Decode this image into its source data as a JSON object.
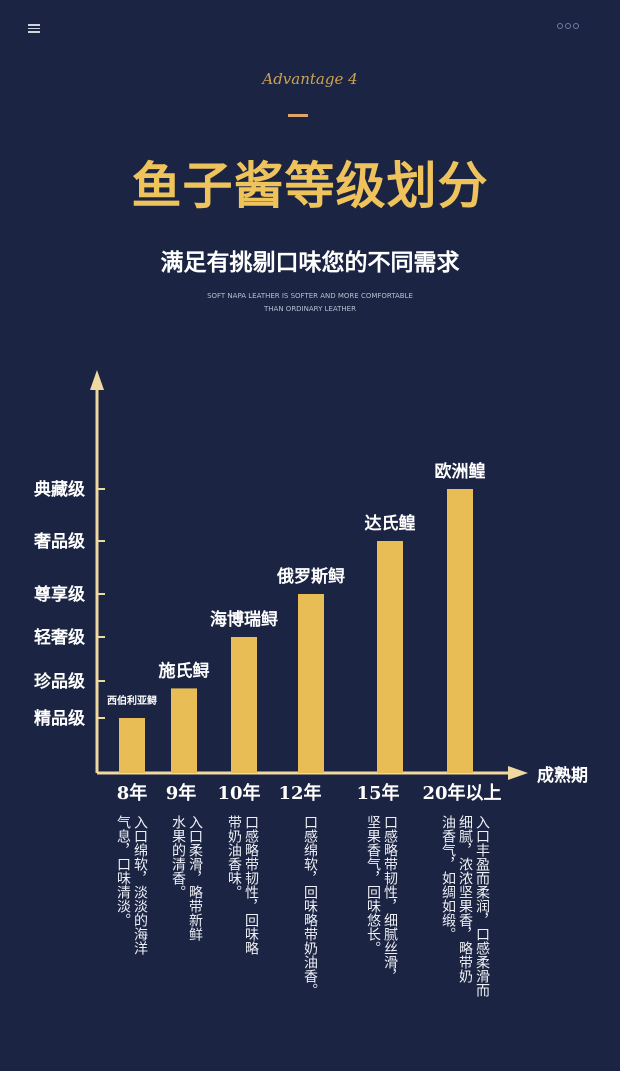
{
  "header": {
    "menu_icon": "hamburger-icon",
    "more_icon": "dots-icon"
  },
  "advantage": "Advantage 4",
  "title": "鱼子酱等级划分",
  "subtitle": "满足有挑剔口味您的不同需求",
  "english": [
    "SOFT NAPA LEATHER IS SOFTER AND MORE COMFORTABLE",
    "THAN ORDINARY LEATHER"
  ],
  "colors": {
    "background": "#1b2442",
    "gold": "#efc35c",
    "bar": "#e8bd55"
  },
  "chart_data": {
    "type": "bar",
    "xlabel": "成熟期",
    "ylabel": "",
    "y_levels": [
      "精品级",
      "珍品级",
      "轻奢级",
      "尊享级",
      "奢品级",
      "典藏级"
    ],
    "categories": [
      "8年",
      "9年",
      "10年",
      "12年",
      "15年",
      "20年以上"
    ],
    "bar_labels": [
      "西伯利亚鲟",
      "施氏鲟",
      "海博瑞鲟",
      "俄罗斯鲟",
      "达氏鳇",
      "欧洲鳇"
    ],
    "values": [
      1,
      1.8,
      3,
      4,
      5,
      6
    ],
    "ylim": [
      0,
      6.5
    ]
  },
  "descriptions": [
    [
      "入口绵软，淡淡的海洋",
      "气息，口味清淡。"
    ],
    [
      "入口柔滑，略带新鲜",
      "水果的清香。"
    ],
    [
      "口感略带韧性，回味略",
      "带奶油香味。"
    ],
    [
      "口感绵软，回味略带奶油香。"
    ],
    [
      "口感略带韧性，细腻丝滑，",
      "坚果香气，回味悠长。"
    ],
    [
      "入口丰盈而柔润，口感柔滑而",
      "细腻，浓浓坚果香，略带奶",
      "油香气，如绸如缎。"
    ]
  ]
}
